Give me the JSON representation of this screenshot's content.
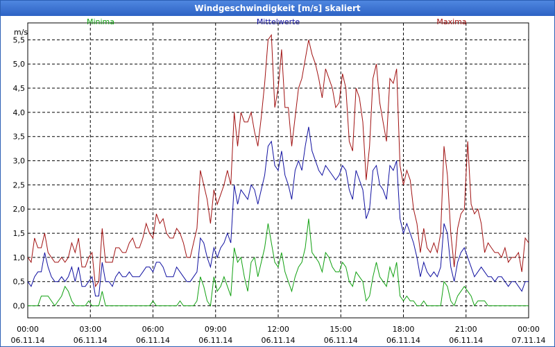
{
  "window": {
    "title": "Windgeschwindigkeit [m/s] skaliert"
  },
  "chart_data": {
    "type": "line",
    "title": "Windgeschwindigkeit [m/s] skaliert",
    "ylabel": "m/s",
    "xlabel": "",
    "ylim": [
      -0.25,
      5.85
    ],
    "xlim": [
      0,
      24
    ],
    "grid": true,
    "legend_position": "top",
    "y_ticks": [
      "0,0",
      "0,5",
      "1,0",
      "1,5",
      "2,0",
      "2,5",
      "3,0",
      "3,5",
      "4,0",
      "4,5",
      "5,0",
      "5,5"
    ],
    "x_ticks": [
      {
        "time": "00:00",
        "date": "06.11.14"
      },
      {
        "time": "03:00",
        "date": "06.11.14"
      },
      {
        "time": "06:00",
        "date": "06.11.14"
      },
      {
        "time": "09:00",
        "date": "06.11.14"
      },
      {
        "time": "12:00",
        "date": "06.11.14"
      },
      {
        "time": "15:00",
        "date": "06.11.14"
      },
      {
        "time": "18:00",
        "date": "06.11.14"
      },
      {
        "time": "21:00",
        "date": "06.11.14"
      },
      {
        "time": "00:00",
        "date": "07.11.14"
      }
    ],
    "series": [
      {
        "name": "Maxima",
        "color": "#a01010",
        "values": [
          1.0,
          0.9,
          1.4,
          1.2,
          1.2,
          1.5,
          1.1,
          1.0,
          0.9,
          0.9,
          1.0,
          0.9,
          1.0,
          1.3,
          1.1,
          1.4,
          0.8,
          0.8,
          1.0,
          1.1,
          0.4,
          0.5,
          1.6,
          0.9,
          0.9,
          0.9,
          1.2,
          1.2,
          1.1,
          1.1,
          1.3,
          1.4,
          1.2,
          1.2,
          1.4,
          1.7,
          1.5,
          1.4,
          1.9,
          1.7,
          1.8,
          1.5,
          1.4,
          1.4,
          1.6,
          1.5,
          1.3,
          1.0,
          1.0,
          1.3,
          1.6,
          2.8,
          2.5,
          2.2,
          1.7,
          2.4,
          2.1,
          2.3,
          2.5,
          2.8,
          2.5,
          4.0,
          3.3,
          4.0,
          3.8,
          3.8,
          4.0,
          3.6,
          3.3,
          3.9,
          4.6,
          5.5,
          5.6,
          4.1,
          4.5,
          5.3,
          4.1,
          4.1,
          3.3,
          3.9,
          4.5,
          4.7,
          5.1,
          5.5,
          5.2,
          5.0,
          4.7,
          4.3,
          4.9,
          4.7,
          4.5,
          4.1,
          4.2,
          4.8,
          4.5,
          3.4,
          3.2,
          4.5,
          4.3,
          3.8,
          2.6,
          3.3,
          4.7,
          5.0,
          4.2,
          3.8,
          3.4,
          4.7,
          4.6,
          4.9,
          2.9,
          2.5,
          2.8,
          2.6,
          2.0,
          1.7,
          1.1,
          1.6,
          1.2,
          1.1,
          1.3,
          1.1,
          1.5,
          3.3,
          2.7,
          1.5,
          0.8,
          1.6,
          1.9,
          2.0,
          3.4,
          2.1,
          1.9,
          2.0,
          1.7,
          1.1,
          1.3,
          1.2,
          1.1,
          1.1,
          1.0,
          1.2,
          0.9,
          1.0,
          1.0,
          1.1,
          0.7,
          1.4,
          1.3
        ]
      },
      {
        "name": "Mittelwerte",
        "color": "#1010a0",
        "values": [
          0.5,
          0.4,
          0.6,
          0.7,
          0.7,
          1.1,
          0.8,
          0.6,
          0.5,
          0.5,
          0.6,
          0.5,
          0.6,
          0.8,
          0.5,
          0.8,
          0.4,
          0.4,
          0.5,
          0.6,
          0.2,
          0.2,
          0.9,
          0.5,
          0.5,
          0.4,
          0.6,
          0.7,
          0.6,
          0.6,
          0.7,
          0.6,
          0.6,
          0.6,
          0.7,
          0.8,
          0.8,
          0.7,
          0.9,
          0.9,
          0.8,
          0.6,
          0.6,
          0.6,
          0.8,
          0.7,
          0.6,
          0.5,
          0.5,
          0.6,
          0.7,
          1.4,
          1.3,
          1.0,
          0.8,
          1.2,
          1.0,
          1.2,
          1.3,
          1.5,
          1.3,
          2.5,
          2.1,
          2.4,
          2.3,
          2.2,
          2.5,
          2.4,
          2.1,
          2.4,
          2.7,
          3.3,
          3.4,
          2.9,
          2.8,
          3.2,
          2.7,
          2.5,
          2.2,
          2.8,
          3.0,
          2.8,
          3.3,
          3.7,
          3.2,
          3.0,
          2.8,
          2.7,
          2.9,
          2.8,
          2.7,
          2.6,
          2.7,
          2.9,
          2.8,
          2.4,
          2.2,
          2.8,
          2.6,
          2.4,
          1.8,
          2.0,
          2.8,
          2.9,
          2.5,
          2.4,
          2.2,
          2.9,
          2.8,
          3.0,
          1.8,
          1.5,
          1.7,
          1.5,
          1.3,
          1.0,
          0.6,
          0.9,
          0.7,
          0.6,
          0.7,
          0.6,
          0.8,
          1.7,
          1.5,
          0.8,
          0.5,
          0.9,
          1.1,
          1.2,
          1.0,
          0.8,
          0.6,
          0.7,
          0.8,
          0.7,
          0.6,
          0.6,
          0.5,
          0.6,
          0.6,
          0.5,
          0.4,
          0.5,
          0.5,
          0.4,
          0.3,
          0.5,
          0.5
        ]
      },
      {
        "name": "Minima",
        "color": "#10a010",
        "values": [
          0,
          0,
          0,
          0,
          0.2,
          0.2,
          0.2,
          0.1,
          0,
          0.1,
          0.2,
          0.4,
          0.3,
          0.1,
          0,
          0,
          0,
          0,
          0.1,
          0,
          0,
          0,
          0.3,
          0,
          0,
          0,
          0,
          0,
          0,
          0,
          0,
          0,
          0,
          0,
          0,
          0,
          0,
          0.1,
          0,
          0,
          0,
          0,
          0,
          0,
          0,
          0.1,
          0,
          0,
          0,
          0,
          0.1,
          0.6,
          0.4,
          0.1,
          0,
          0.6,
          0.3,
          0.4,
          0.6,
          0.4,
          0.2,
          1.2,
          0.9,
          1.0,
          0.6,
          0.3,
          0.9,
          1.0,
          0.6,
          0.9,
          1.2,
          1.7,
          1.3,
          0.9,
          0.8,
          1.1,
          0.7,
          0.5,
          0.3,
          0.6,
          0.8,
          0.9,
          1.2,
          1.8,
          1.1,
          1.0,
          0.9,
          0.7,
          1.1,
          1.0,
          0.8,
          0.7,
          0.7,
          0.9,
          0.8,
          0.5,
          0.4,
          0.7,
          0.6,
          0.5,
          0.1,
          0.2,
          0.6,
          0.9,
          0.6,
          0.5,
          0.4,
          0.8,
          0.6,
          0.9,
          0.2,
          0.1,
          0.2,
          0.1,
          0.1,
          0,
          0,
          0.1,
          0,
          0,
          0,
          0,
          0,
          0.5,
          0.4,
          0.1,
          0,
          0.2,
          0.3,
          0.4,
          0.3,
          0.2,
          0,
          0.1,
          0.1,
          0.1,
          0,
          0,
          0,
          0,
          0,
          0,
          0,
          0,
          0,
          0,
          0,
          0,
          0
        ]
      }
    ]
  }
}
